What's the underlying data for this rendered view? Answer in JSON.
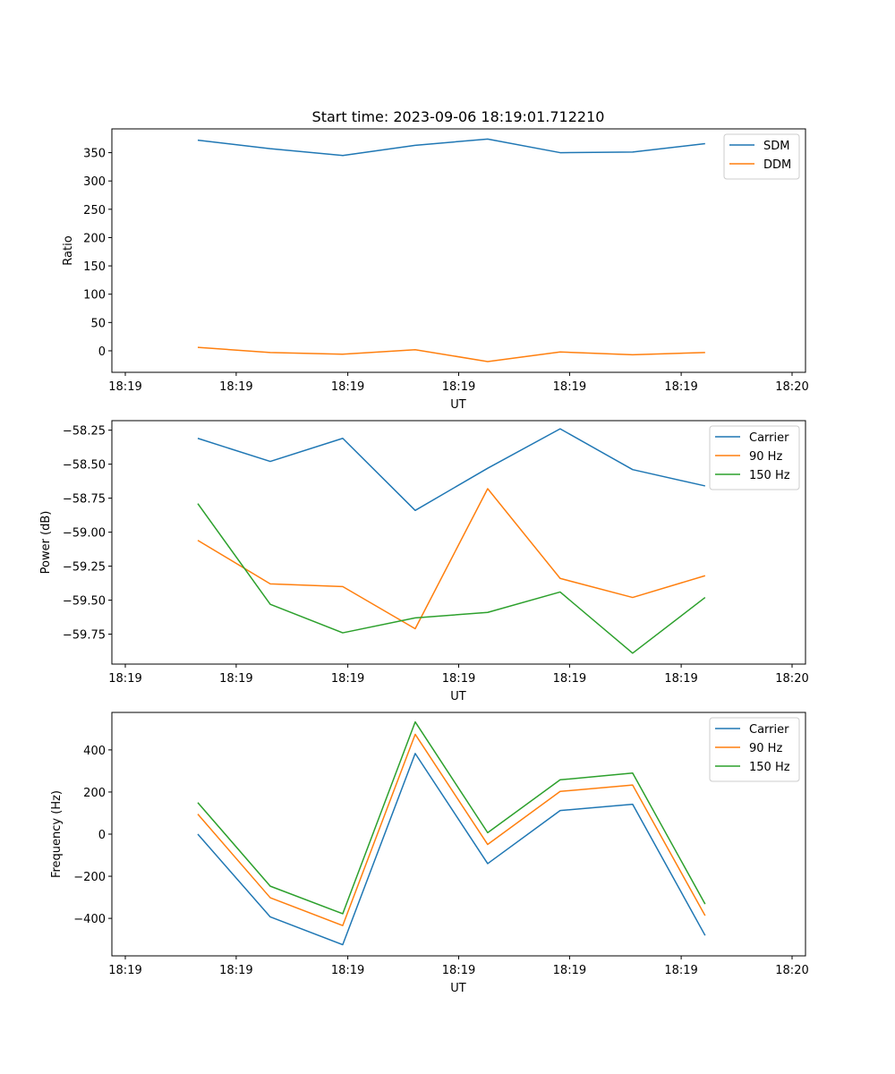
{
  "figure_title": "Start time: 2023-09-06 18:19:01.712210",
  "colors": {
    "blue": "#1f77b4",
    "orange": "#ff7f0e",
    "green": "#2ca02c"
  },
  "chart_data": [
    {
      "type": "line",
      "title": "Start time: 2023-09-06 18:19:01.712210",
      "xlabel": "UT",
      "ylabel": "Ratio",
      "x_tick_labels": [
        "18:19",
        "18:19",
        "18:19",
        "18:19",
        "18:19",
        "18:19",
        "18:20"
      ],
      "x_points": [
        1,
        2,
        3,
        4,
        5,
        6,
        7,
        8
      ],
      "xlim": [
        0,
        9.2
      ],
      "x_tick_positions": [
        0,
        1.53,
        3.07,
        4.6,
        6.13,
        7.67,
        9.2
      ],
      "ylim": [
        -38,
        392
      ],
      "yticks": [
        0,
        50,
        100,
        150,
        200,
        250,
        300,
        350
      ],
      "legend_location": "top-right",
      "series": [
        {
          "name": "SDM",
          "color": "#1f77b4",
          "values": [
            372,
            357,
            345,
            363,
            374,
            350,
            351,
            366
          ]
        },
        {
          "name": "DDM",
          "color": "#ff7f0e",
          "values": [
            6,
            -3,
            -6,
            2,
            -19,
            -2,
            -7,
            -3
          ]
        }
      ]
    },
    {
      "type": "line",
      "title": "",
      "xlabel": "UT",
      "ylabel": "Power (dB)",
      "x_tick_labels": [
        "18:19",
        "18:19",
        "18:19",
        "18:19",
        "18:19",
        "18:19",
        "18:20"
      ],
      "x_points": [
        1,
        2,
        3,
        4,
        5,
        6,
        7,
        8
      ],
      "xlim": [
        0,
        9.2
      ],
      "x_tick_positions": [
        0,
        1.53,
        3.07,
        4.6,
        6.13,
        7.67,
        9.2
      ],
      "ylim": [
        -59.97,
        -58.18
      ],
      "yticks": [
        -58.25,
        -58.5,
        -58.75,
        -59.0,
        -59.25,
        -59.5,
        -59.75
      ],
      "ytick_labels": [
        "−58.25",
        "−58.50",
        "−58.75",
        "−59.00",
        "−59.25",
        "−59.50",
        "−59.75"
      ],
      "legend_location": "top-right",
      "series": [
        {
          "name": "Carrier",
          "color": "#1f77b4",
          "values": [
            -58.31,
            -58.48,
            -58.31,
            -58.84,
            -58.53,
            -58.24,
            -58.54,
            -58.66
          ]
        },
        {
          "name": "90 Hz",
          "color": "#ff7f0e",
          "values": [
            -59.06,
            -59.38,
            -59.4,
            -59.71,
            -58.68,
            -59.34,
            -59.48,
            -59.32
          ]
        },
        {
          "name": "150 Hz",
          "color": "#2ca02c",
          "values": [
            -58.79,
            -59.53,
            -59.74,
            -59.63,
            -59.59,
            -59.44,
            -59.89,
            -59.48
          ]
        }
      ]
    },
    {
      "type": "line",
      "title": "",
      "xlabel": "UT",
      "ylabel": "Frequency (Hz)",
      "x_tick_labels": [
        "18:19",
        "18:19",
        "18:19",
        "18:19",
        "18:19",
        "18:19",
        "18:20"
      ],
      "x_points": [
        1,
        2,
        3,
        4,
        5,
        6,
        7,
        8
      ],
      "xlim": [
        0,
        9.2
      ],
      "x_tick_positions": [
        0,
        1.53,
        3.07,
        4.6,
        6.13,
        7.67,
        9.2
      ],
      "ylim": [
        -578,
        578
      ],
      "yticks": [
        400,
        200,
        0,
        -200,
        -400
      ],
      "ytick_labels": [
        "400",
        "200",
        "0",
        "−200",
        "−400"
      ],
      "legend_location": "top-right",
      "series": [
        {
          "name": "Carrier",
          "color": "#1f77b4",
          "values": [
            0,
            -393,
            -525,
            383,
            -140,
            112,
            142,
            -481
          ]
        },
        {
          "name": "90 Hz",
          "color": "#ff7f0e",
          "values": [
            95,
            -302,
            -434,
            474,
            -49,
            203,
            233,
            -387
          ]
        },
        {
          "name": "150 Hz",
          "color": "#2ca02c",
          "values": [
            150,
            -247,
            -378,
            533,
            7,
            258,
            290,
            -332
          ]
        }
      ]
    }
  ]
}
